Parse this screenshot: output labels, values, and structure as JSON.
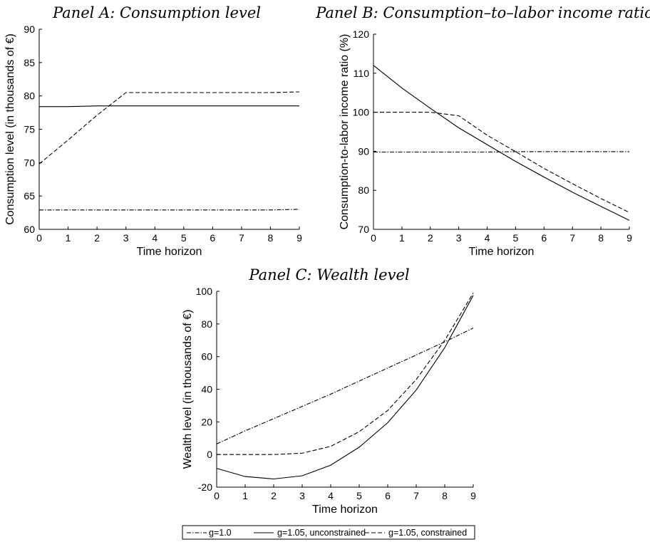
{
  "chart_data": [
    {
      "type": "line",
      "title": "Panel A: Consumption level",
      "xlabel": "Time horizon",
      "ylabel": "Consumption level (in thousands of €)",
      "xlim": [
        0,
        9
      ],
      "ylim": [
        60,
        90
      ],
      "xticks": [
        0,
        1,
        2,
        3,
        4,
        5,
        6,
        7,
        8,
        9
      ],
      "yticks": [
        60,
        65,
        70,
        75,
        80,
        85,
        90
      ],
      "grid": false,
      "series": [
        {
          "name": "g=1.0",
          "style": "dashdot",
          "x": [
            0,
            1,
            2,
            3,
            4,
            5,
            6,
            7,
            8,
            9
          ],
          "values": [
            62.9,
            62.9,
            62.9,
            62.9,
            62.9,
            62.9,
            62.9,
            62.9,
            62.9,
            63.0
          ]
        },
        {
          "name": "g=1.05, unconstrained",
          "style": "solid",
          "x": [
            0,
            1,
            2,
            3,
            4,
            5,
            6,
            7,
            8,
            9
          ],
          "values": [
            78.4,
            78.4,
            78.5,
            78.5,
            78.5,
            78.5,
            78.5,
            78.5,
            78.5,
            78.5
          ]
        },
        {
          "name": "g=1.05, constrained",
          "style": "dashed",
          "x": [
            0,
            1,
            2,
            3,
            4,
            5,
            6,
            7,
            8,
            9
          ],
          "values": [
            69.8,
            73.4,
            77.1,
            80.5,
            80.5,
            80.5,
            80.5,
            80.5,
            80.5,
            80.6
          ]
        }
      ]
    },
    {
      "type": "line",
      "title": "Panel B: Consumption–to–labor income ratio",
      "xlabel": "Time horizon",
      "ylabel": "Consumption-to-labor income ratio (%)",
      "xlim": [
        0,
        9
      ],
      "ylim": [
        70,
        120
      ],
      "xticks": [
        0,
        1,
        2,
        3,
        4,
        5,
        6,
        7,
        8,
        9
      ],
      "yticks": [
        70,
        80,
        90,
        100,
        110,
        120
      ],
      "grid": false,
      "series": [
        {
          "name": "g=1.0",
          "style": "dashdot",
          "x": [
            0,
            1,
            2,
            3,
            4,
            5,
            6,
            7,
            8,
            9
          ],
          "values": [
            89.8,
            89.8,
            89.8,
            89.8,
            89.8,
            89.9,
            89.9,
            89.9,
            89.9,
            89.9
          ]
        },
        {
          "name": "g=1.05, unconstrained",
          "style": "solid",
          "x": [
            0,
            1,
            2,
            3,
            4,
            5,
            6,
            7,
            8,
            9
          ],
          "values": [
            112.0,
            106.2,
            101.0,
            96.0,
            91.7,
            87.4,
            83.4,
            79.5,
            75.9,
            72.3
          ]
        },
        {
          "name": "g=1.05, constrained",
          "style": "dashed",
          "x": [
            0,
            1,
            2,
            3,
            4,
            5,
            6,
            7,
            8,
            9
          ],
          "values": [
            100.0,
            100.0,
            100.0,
            99.1,
            94.1,
            89.9,
            85.6,
            81.7,
            77.9,
            74.3
          ]
        }
      ]
    },
    {
      "type": "line",
      "title": "Panel C: Wealth level",
      "xlabel": "Time horizon",
      "ylabel": "Wealth level (in thousands of €)",
      "xlim": [
        0,
        9
      ],
      "ylim": [
        -20,
        100
      ],
      "xticks": [
        0,
        1,
        2,
        3,
        4,
        5,
        6,
        7,
        8,
        9
      ],
      "yticks": [
        -20,
        0,
        20,
        40,
        60,
        80,
        100
      ],
      "grid": false,
      "series": [
        {
          "name": "g=1.0",
          "style": "dashdot",
          "x": [
            0,
            1,
            2,
            3,
            4,
            5,
            6,
            7,
            8,
            9
          ],
          "values": [
            6.5,
            14.5,
            22,
            29.5,
            37,
            45,
            53,
            61,
            69,
            77.5
          ]
        },
        {
          "name": "g=1.05, unconstrained",
          "style": "solid",
          "x": [
            0,
            1,
            2,
            3,
            4,
            5,
            6,
            7,
            8,
            9
          ],
          "values": [
            -8.5,
            -13.5,
            -15,
            -13,
            -6.5,
            4.5,
            19.5,
            39.5,
            65.5,
            97.5
          ]
        },
        {
          "name": "g=1.05, constrained",
          "style": "dashed",
          "x": [
            0,
            1,
            2,
            3,
            4,
            5,
            6,
            7,
            8,
            9
          ],
          "values": [
            0,
            0,
            0,
            0.8,
            5,
            14,
            27,
            46,
            70,
            99
          ]
        }
      ]
    }
  ],
  "legend": {
    "placement": "bottom-center",
    "entries": [
      {
        "label": "g=1.0",
        "style": "dashdot"
      },
      {
        "label": "g=1.05, unconstrained",
        "style": "solid"
      },
      {
        "label": "g=1.05, constrained",
        "style": "dashed"
      }
    ]
  }
}
